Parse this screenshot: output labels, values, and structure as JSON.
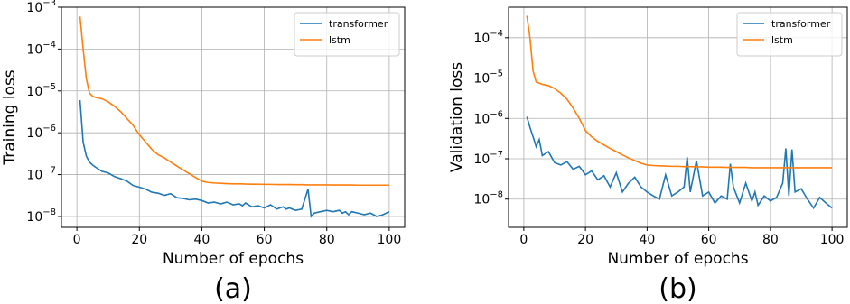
{
  "chart_data": [
    {
      "type": "line",
      "title": "(a)",
      "xlabel": "Number of epochs",
      "ylabel": "Training loss",
      "log_y": true,
      "grid": true,
      "legend": "upper right",
      "xlim": [
        -4.95,
        104.95
      ],
      "xticks": [
        0,
        20,
        40,
        60,
        80,
        100
      ],
      "ylim": [
        5.5e-09,
        0.001
      ],
      "yticks": [
        {
          "value": 1e-08,
          "label": "10−8"
        },
        {
          "value": 1e-07,
          "label": "10−7"
        },
        {
          "value": 1e-06,
          "label": "10−6"
        },
        {
          "value": 1e-05,
          "label": "10−5"
        },
        {
          "value": 0.0001,
          "label": "10−4"
        },
        {
          "value": 0.001,
          "label": "10−3"
        }
      ],
      "x": [
        1,
        2,
        3,
        4,
        5,
        6,
        8,
        10,
        12,
        14,
        16,
        18,
        20,
        22,
        24,
        26,
        28,
        30,
        32,
        34,
        36,
        38,
        40,
        42,
        44,
        46,
        48,
        50,
        52,
        53,
        54,
        56,
        58,
        60,
        62,
        64,
        66,
        67,
        68,
        70,
        72,
        74,
        75,
        76,
        78,
        80,
        82,
        84,
        85,
        86,
        87,
        88,
        90,
        92,
        94,
        96,
        98,
        100
      ],
      "series": [
        {
          "name": "transformer",
          "color": "#1f77b4",
          "values": [
            6e-06,
            6e-07,
            2.8e-07,
            2e-07,
            1.7e-07,
            1.5e-07,
            1.2e-07,
            1.1e-07,
            9e-08,
            8e-08,
            7e-08,
            5.5e-08,
            5e-08,
            4.5e-08,
            3.8e-08,
            3.6e-08,
            3.2e-08,
            3.5e-08,
            2.8e-08,
            2.7e-08,
            2.5e-08,
            2.6e-08,
            2.4e-08,
            2.1e-08,
            2.2e-08,
            2e-08,
            2.2e-08,
            1.9e-08,
            2e-08,
            1.8e-08,
            2.1e-08,
            1.7e-08,
            1.8e-08,
            1.6e-08,
            1.9e-08,
            1.5e-08,
            1.7e-08,
            1.5e-08,
            1.6e-08,
            1.4e-08,
            1.5e-08,
            4.5e-08,
            1e-08,
            1.2e-08,
            1.3e-08,
            1.4e-08,
            1.3e-08,
            1.4e-08,
            1.2e-08,
            1.3e-08,
            1.1e-08,
            1.3e-08,
            1.2e-08,
            1.1e-08,
            1.2e-08,
            1e-08,
            1.1e-08,
            1.3e-08
          ]
        },
        {
          "name": "lstm",
          "color": "#ff7f0e",
          "values": [
            0.0006,
            0.0001,
            2e-05,
            9e-06,
            7.5e-06,
            7e-06,
            6.5e-06,
            5.5e-06,
            4.3e-06,
            3.2e-06,
            2.2e-06,
            1.5e-06,
            9e-07,
            6e-07,
            4e-07,
            3e-07,
            2.5e-07,
            2e-07,
            1.6e-07,
            1.3e-07,
            1.05e-07,
            8.5e-08,
            7e-08,
            6.5e-08,
            6.3e-08,
            6.2e-08,
            6.1e-08,
            6e-08,
            6e-08,
            6e-08,
            5.95e-08,
            5.9e-08,
            5.9e-08,
            5.85e-08,
            5.85e-08,
            5.8e-08,
            5.8e-08,
            5.8e-08,
            5.8e-08,
            5.75e-08,
            5.75e-08,
            5.7e-08,
            5.7e-08,
            5.7e-08,
            5.7e-08,
            5.7e-08,
            5.65e-08,
            5.65e-08,
            5.65e-08,
            5.65e-08,
            5.65e-08,
            5.65e-08,
            5.6e-08,
            5.6e-08,
            5.6e-08,
            5.6e-08,
            5.6e-08,
            5.6e-08
          ]
        }
      ]
    },
    {
      "type": "line",
      "title": "(b)",
      "xlabel": "Number of epochs",
      "ylabel": "Validation loss",
      "log_y": true,
      "grid": true,
      "legend": "upper right",
      "xlim": [
        -4.95,
        104.95
      ],
      "xticks": [
        0,
        20,
        40,
        60,
        80,
        100
      ],
      "ylim": [
        2e-09,
        0.00057
      ],
      "yticks": [
        {
          "value": 1e-08,
          "label": "10−8"
        },
        {
          "value": 1e-07,
          "label": "10−7"
        },
        {
          "value": 1e-06,
          "label": "10−6"
        },
        {
          "value": 1e-05,
          "label": "10−5"
        },
        {
          "value": 0.0001,
          "label": "10−4"
        }
      ],
      "x": [
        1,
        2,
        3,
        4,
        5,
        6,
        8,
        10,
        12,
        14,
        16,
        18,
        20,
        22,
        24,
        26,
        28,
        30,
        32,
        34,
        36,
        38,
        40,
        42,
        44,
        46,
        48,
        50,
        52,
        53,
        54,
        56,
        58,
        60,
        62,
        64,
        66,
        67,
        68,
        70,
        72,
        74,
        75,
        76,
        78,
        80,
        82,
        84,
        85,
        86,
        87,
        88,
        90,
        92,
        94,
        96,
        98,
        100
      ],
      "series": [
        {
          "name": "transformer",
          "color": "#1f77b4",
          "values": [
            1.1e-06,
            6e-07,
            3.5e-07,
            2e-07,
            3e-07,
            1.2e-07,
            1.5e-07,
            8e-08,
            7e-08,
            8.5e-08,
            5.5e-08,
            6.5e-08,
            4e-08,
            5e-08,
            3e-08,
            3.8e-08,
            2e-08,
            4.5e-08,
            1.5e-08,
            2.5e-08,
            3.5e-08,
            2e-08,
            1.5e-08,
            1.2e-08,
            1e-08,
            4e-08,
            1.2e-08,
            1.5e-08,
            2e-08,
            1.1e-07,
            1.5e-08,
            9e-08,
            1.2e-08,
            1.5e-08,
            8e-09,
            1.2e-08,
            1e-08,
            7.5e-08,
            2e-08,
            8e-09,
            2.5e-08,
            9e-09,
            1.5e-08,
            7e-09,
            1.2e-08,
            9e-09,
            1.1e-08,
            2.5e-08,
            1.8e-07,
            1.2e-08,
            1.7e-07,
            1.5e-08,
            1.8e-08,
            1e-08,
            6e-09,
            1.1e-08,
            8e-09,
            6e-09
          ]
        },
        {
          "name": "lstm",
          "color": "#ff7f0e",
          "values": [
            0.00035,
            0.0001,
            1.5e-05,
            8e-06,
            7.5e-06,
            7e-06,
            6.5e-06,
            5.5e-06,
            4.2e-06,
            3e-06,
            1.8e-06,
            1e-06,
            5e-07,
            3.5e-07,
            2.7e-07,
            2.2e-07,
            1.8e-07,
            1.5e-07,
            1.25e-07,
            1.05e-07,
            9e-08,
            7.8e-08,
            7e-08,
            6.8e-08,
            6.7e-08,
            6.6e-08,
            6.5e-08,
            6.5e-08,
            6.4e-08,
            6.4e-08,
            6.4e-08,
            6.3e-08,
            6.3e-08,
            6.2e-08,
            6.2e-08,
            6.2e-08,
            6.1e-08,
            6.1e-08,
            6.1e-08,
            6.1e-08,
            6.1e-08,
            6e-08,
            6e-08,
            6e-08,
            6e-08,
            6e-08,
            6e-08,
            6e-08,
            6e-08,
            6e-08,
            6e-08,
            6e-08,
            6e-08,
            6e-08,
            6e-08,
            6e-08,
            6e-08,
            6e-08
          ]
        }
      ]
    }
  ]
}
